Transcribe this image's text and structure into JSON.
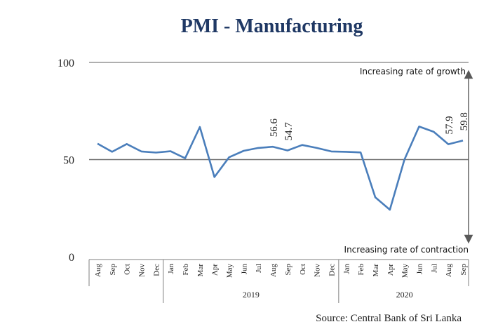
{
  "chart_data": {
    "type": "line",
    "title": "PMI - Manufacturing",
    "source": "Source: Central Bank of Sri Lanka",
    "ylim": [
      0,
      100
    ],
    "yticks": [
      0,
      50,
      100
    ],
    "reference_line": 50,
    "annotations": {
      "growth": "Increasing rate of growth",
      "contraction": "Increasing rate of contraction"
    },
    "categories": [
      "Aug",
      "Sep",
      "Oct",
      "Nov",
      "Dec",
      "Jan",
      "Feb",
      "Mar",
      "Apr",
      "May",
      "Jun",
      "Jul",
      "Aug",
      "Sep",
      "Oct",
      "Nov",
      "Dec",
      "Jan",
      "Feb",
      "Mar",
      "Apr",
      "May",
      "Jun",
      "Jul",
      "Aug",
      "Sep"
    ],
    "years": [
      {
        "label": "2019",
        "start": 5,
        "end": 16
      },
      {
        "label": "2020",
        "start": 17,
        "end": 25
      }
    ],
    "series": [
      {
        "name": "PMI - Manufacturing",
        "color": "#4a7ebb",
        "values": [
          58.2,
          54.0,
          58.0,
          54.2,
          53.6,
          54.3,
          50.7,
          66.8,
          41.0,
          51.2,
          54.5,
          56.0,
          56.6,
          54.7,
          57.5,
          56.0,
          54.2,
          54.0,
          53.7,
          30.6,
          24.2,
          50.0,
          67.0,
          64.3,
          57.9,
          59.8
        ]
      }
    ],
    "data_labels": [
      {
        "index": 12,
        "text": "56.6"
      },
      {
        "index": 13,
        "text": "54.7"
      },
      {
        "index": 24,
        "text": "57.9"
      },
      {
        "index": 25,
        "text": "59.8"
      }
    ]
  }
}
